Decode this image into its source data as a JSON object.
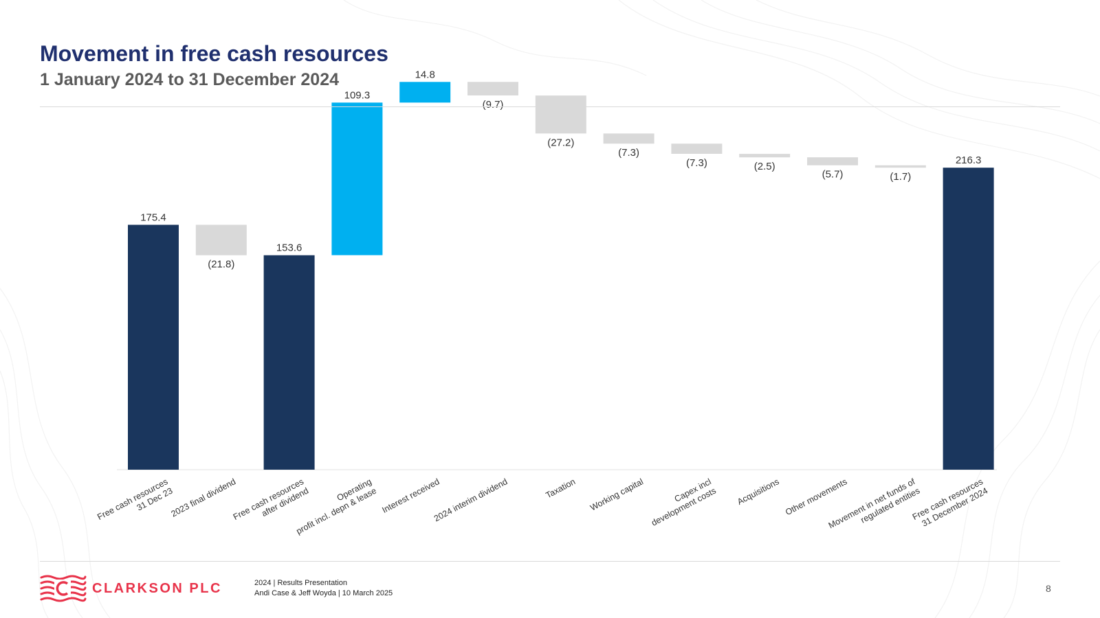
{
  "title": "Movement in free cash resources",
  "subtitle": "1 January 2024 to 31 December 2024",
  "colors": {
    "title": "#1f2f6e",
    "total": "#1a365d",
    "increase": "#00b0f0",
    "decrease": "#d9d9d9",
    "brand": "#e8334a"
  },
  "chart_data": {
    "type": "bar",
    "variant": "waterfall",
    "title": "",
    "xlabel": "",
    "ylabel": "",
    "ylim": [
      0,
      240
    ],
    "grid": false,
    "legend": "none",
    "steps": [
      {
        "label": [
          "Free cash resources",
          "31 Dec 23"
        ],
        "value": 175.4,
        "display": "175.4",
        "kind": "total"
      },
      {
        "label": [
          "2023 final dividend"
        ],
        "value": -21.8,
        "display": "(21.8)",
        "kind": "decrease"
      },
      {
        "label": [
          "Free cash resources",
          "after dividend"
        ],
        "value": 153.6,
        "display": "153.6",
        "kind": "total"
      },
      {
        "label": [
          "Operating",
          "profit incl. depn & lease"
        ],
        "value": 109.3,
        "display": "109.3",
        "kind": "increase"
      },
      {
        "label": [
          "Interest received"
        ],
        "value": 14.8,
        "display": "14.8",
        "kind": "increase"
      },
      {
        "label": [
          "2024 interim dividend"
        ],
        "value": -9.7,
        "display": "(9.7)",
        "kind": "decrease"
      },
      {
        "label": [
          "Taxation"
        ],
        "value": -27.2,
        "display": "(27.2)",
        "kind": "decrease"
      },
      {
        "label": [
          "Working capital"
        ],
        "value": -7.3,
        "display": "(7.3)",
        "kind": "decrease"
      },
      {
        "label": [
          "Capex incl",
          "development costs"
        ],
        "value": -7.3,
        "display": "(7.3)",
        "kind": "decrease"
      },
      {
        "label": [
          "Acquisitions"
        ],
        "value": -2.5,
        "display": "(2.5)",
        "kind": "decrease"
      },
      {
        "label": [
          "Other movements"
        ],
        "value": -5.7,
        "display": "(5.7)",
        "kind": "decrease"
      },
      {
        "label": [
          "Movement in net funds of",
          "regulated entities"
        ],
        "value": -1.7,
        "display": "(1.7)",
        "kind": "decrease"
      },
      {
        "label": [
          "Free cash resources",
          "31 December 2024"
        ],
        "value": 216.3,
        "display": "216.3",
        "kind": "total"
      }
    ]
  },
  "footer": {
    "brand": "CLARKSON PLC",
    "line1": "2024 | Results Presentation",
    "line2": "Andi Case & Jeff Woyda | 10 March 2025",
    "page": "8",
    "logo_icon": "clarksons-waves-logo-icon"
  }
}
